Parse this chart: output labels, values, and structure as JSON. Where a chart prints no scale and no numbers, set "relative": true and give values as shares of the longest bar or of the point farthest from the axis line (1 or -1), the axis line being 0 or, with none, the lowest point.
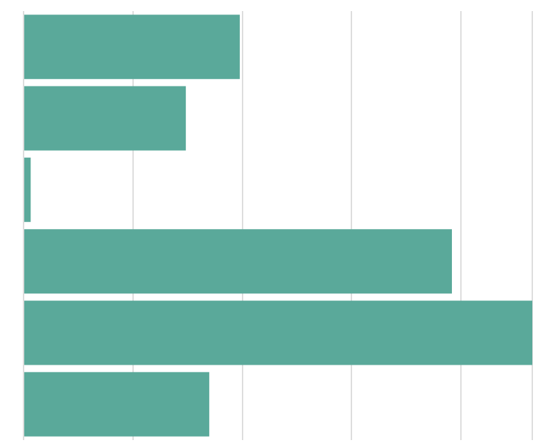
{
  "chart_data": {
    "type": "bar",
    "orientation": "horizontal",
    "relative": true,
    "categories": [
      null,
      null,
      null,
      null,
      null,
      null
    ],
    "values": [
      0.425,
      0.319,
      0.014,
      0.842,
      1,
      0.365
    ],
    "color": "#5aa99a",
    "grid": "x"
  }
}
